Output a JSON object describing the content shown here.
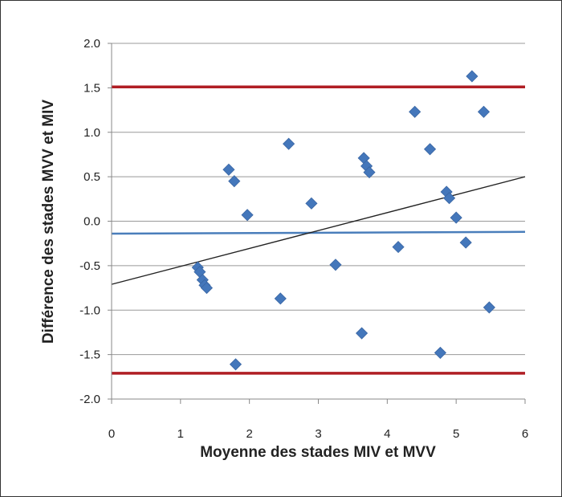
{
  "chart_data": {
    "type": "scatter",
    "xlabel": "Moyenne des stades MIV et MVV",
    "ylabel": "Différence des stades MVV et MIV",
    "xlim": [
      0,
      6
    ],
    "ylim": [
      -2.0,
      2.0
    ],
    "x_ticks": [
      "0",
      "1",
      "2",
      "3",
      "4",
      "5",
      "6"
    ],
    "y_ticks": [
      "2.0",
      "1.5",
      "1.0",
      "0.5",
      "0.0",
      "-0.5",
      "-1.0",
      "-1.5",
      "-2.0"
    ],
    "y_tick_values": [
      2.0,
      1.5,
      1.0,
      0.5,
      0.0,
      -0.5,
      -1.0,
      -1.5,
      -2.0
    ],
    "grid": "horizontal",
    "points": [
      {
        "x": 1.25,
        "y": -0.52
      },
      {
        "x": 1.28,
        "y": -0.57
      },
      {
        "x": 1.32,
        "y": -0.66
      },
      {
        "x": 1.35,
        "y": -0.72
      },
      {
        "x": 1.38,
        "y": -0.75
      },
      {
        "x": 1.7,
        "y": 0.58
      },
      {
        "x": 1.78,
        "y": 0.45
      },
      {
        "x": 1.8,
        "y": -1.61
      },
      {
        "x": 1.97,
        "y": 0.07
      },
      {
        "x": 2.45,
        "y": -0.87
      },
      {
        "x": 2.57,
        "y": 0.87
      },
      {
        "x": 2.9,
        "y": 0.2
      },
      {
        "x": 3.25,
        "y": -0.49
      },
      {
        "x": 3.63,
        "y": -1.26
      },
      {
        "x": 3.66,
        "y": 0.71
      },
      {
        "x": 3.7,
        "y": 0.62
      },
      {
        "x": 3.74,
        "y": 0.55
      },
      {
        "x": 4.16,
        "y": -0.29
      },
      {
        "x": 4.4,
        "y": 1.23
      },
      {
        "x": 4.62,
        "y": 0.81
      },
      {
        "x": 4.77,
        "y": -1.48
      },
      {
        "x": 4.86,
        "y": 0.33
      },
      {
        "x": 4.9,
        "y": 0.26
      },
      {
        "x": 5.0,
        "y": 0.04
      },
      {
        "x": 5.14,
        "y": -0.24
      },
      {
        "x": 5.23,
        "y": 1.63
      },
      {
        "x": 5.4,
        "y": 1.23
      },
      {
        "x": 5.48,
        "y": -0.97
      }
    ],
    "reference_lines": [
      {
        "type": "horizontal",
        "y": 1.51,
        "color": "#b01e24"
      },
      {
        "type": "horizontal",
        "y": -1.71,
        "color": "#b01e24"
      },
      {
        "type": "mean",
        "y_start": -0.14,
        "y_end": -0.12,
        "color": "#4a7ebb"
      }
    ],
    "regression_line": {
      "x_start": 0,
      "y_start": -0.71,
      "x_end": 6,
      "y_end": 0.5,
      "color": "#222222"
    },
    "marker_color": "#4477bb"
  }
}
